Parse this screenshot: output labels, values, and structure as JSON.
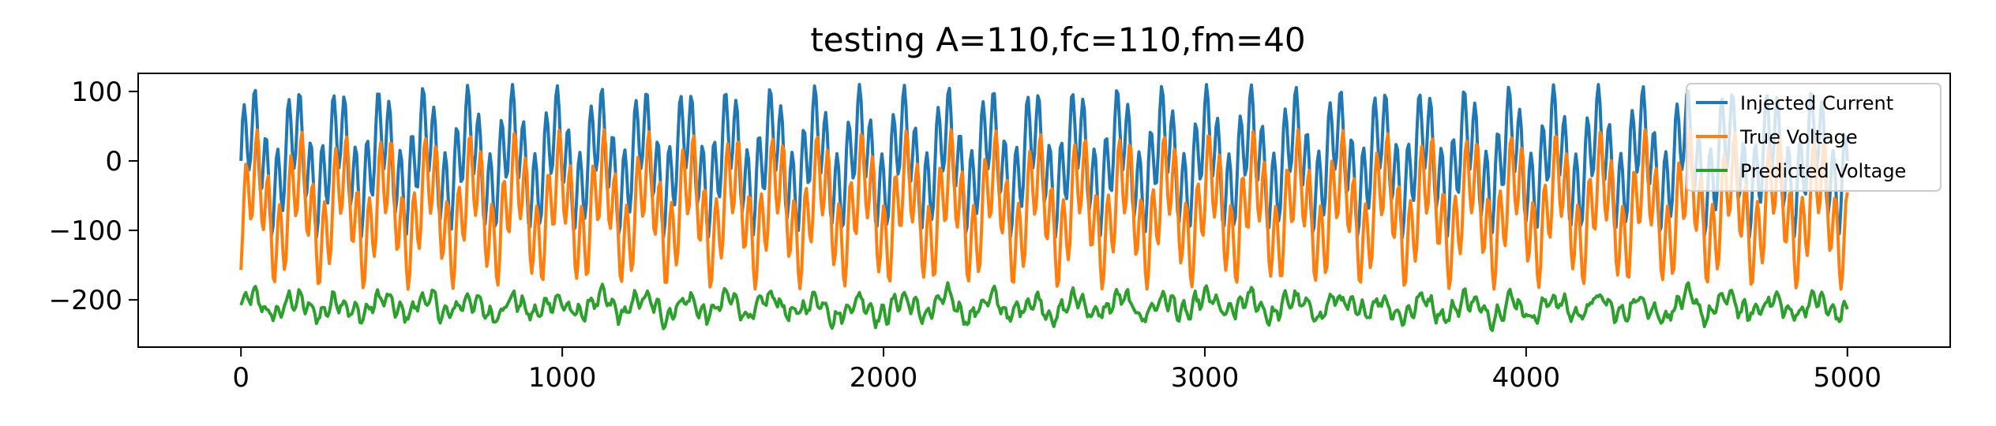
{
  "chart_data": {
    "type": "line",
    "title": "testing A=110,fc=110,fm=40",
    "xlabel": "",
    "ylabel": "",
    "xlim": [
      -320,
      5320
    ],
    "ylim": [
      -268,
      126
    ],
    "x_ticks": [
      0,
      1000,
      2000,
      3000,
      4000,
      5000
    ],
    "x_tick_labels": [
      "0",
      "1000",
      "2000",
      "3000",
      "4000",
      "5000"
    ],
    "y_ticks": [
      100,
      0,
      -100,
      -200
    ],
    "y_tick_labels": [
      "100",
      "0",
      "−100",
      "−200"
    ],
    "grid": false,
    "legend_position": "upper-right",
    "x_range": [
      0,
      5000
    ],
    "sample_step": 5,
    "series": [
      {
        "name": "Injected Current",
        "color": "#1f77b4",
        "model": {
          "carrier_amp": 60,
          "carrier_freq": 0.0287,
          "mod_amp": 50,
          "mod_freq": 0.0074,
          "offset": 0
        }
      },
      {
        "name": "True Voltage",
        "color": "#ff7f0e",
        "model": {
          "carrier_amp": 60,
          "carrier_freq": 0.0287,
          "mod_amp": 55,
          "mod_freq": 0.0074,
          "offset": -70,
          "phase": -1.2
        }
      },
      {
        "name": "Predicted Voltage",
        "color": "#2ca02c",
        "model": {
          "carrier_amp": 10,
          "carrier_freq": 0.0287,
          "mod_amp": 12,
          "mod_freq": 0.0074,
          "offset": -210,
          "noise": 8
        }
      }
    ]
  }
}
